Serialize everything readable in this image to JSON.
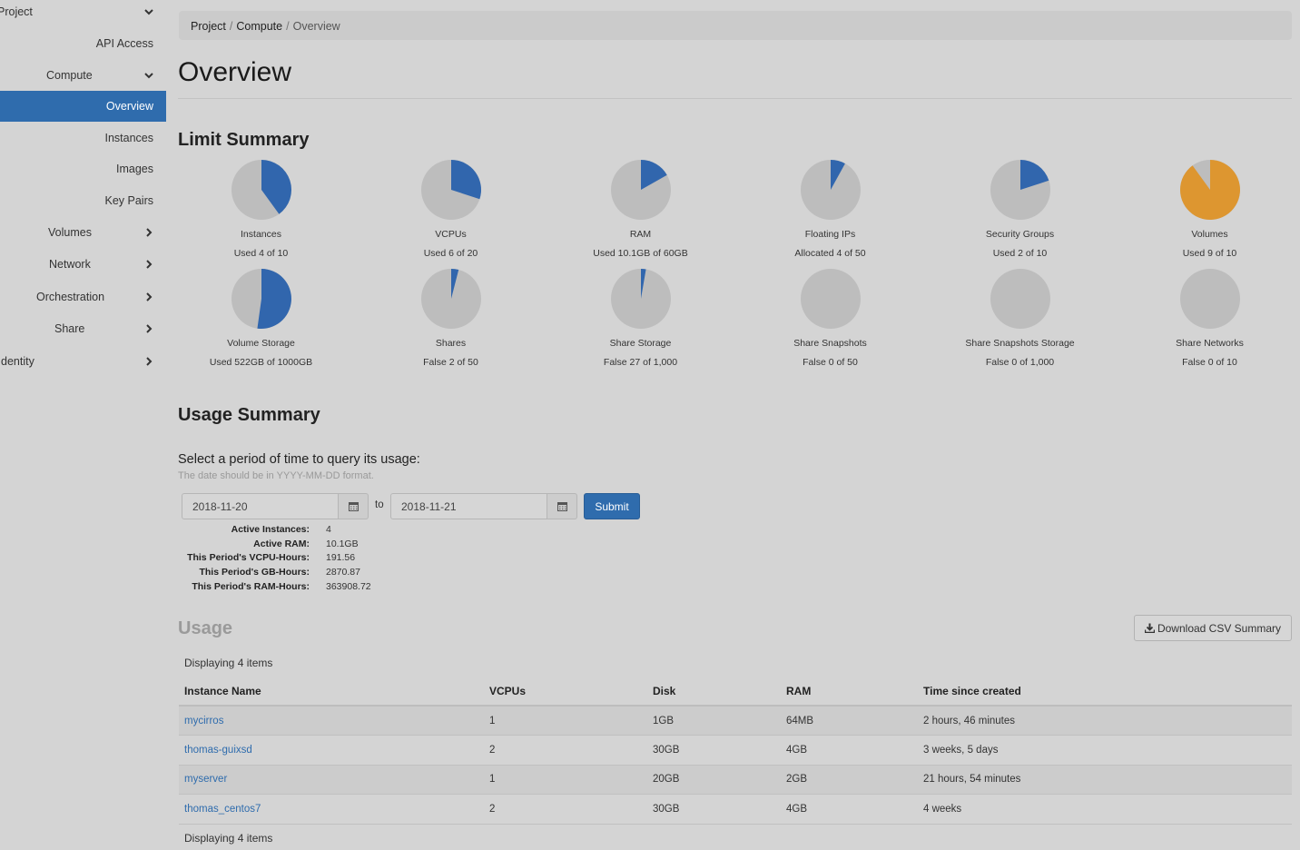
{
  "sidebar": {
    "items": [
      {
        "label": "Project",
        "chevron": "down"
      },
      {
        "label": "API Access"
      },
      {
        "label": "Compute",
        "chevron": "down"
      },
      {
        "label": "Overview",
        "active": true
      },
      {
        "label": "Instances"
      },
      {
        "label": "Images"
      },
      {
        "label": "Key Pairs"
      },
      {
        "label": "Volumes",
        "chevron": "right"
      },
      {
        "label": "Network",
        "chevron": "right"
      },
      {
        "label": "Orchestration",
        "chevron": "right"
      },
      {
        "label": "Share",
        "chevron": "right"
      },
      {
        "label": "dentity",
        "chevron": "right"
      }
    ]
  },
  "breadcrumb": {
    "project": "Project",
    "compute": "Compute",
    "current": "Overview",
    "sep": "/"
  },
  "page_title": "Overview",
  "limit_summary": {
    "title": "Limit Summary",
    "colors": {
      "used": "#3166ad",
      "free": "#bdbdbd",
      "warning": "#dd9630"
    },
    "pies": [
      {
        "label": "Instances",
        "used_text": "Used 4 of 10",
        "fraction": 0.4
      },
      {
        "label": "VCPUs",
        "used_text": "Used 6 of 20",
        "fraction": 0.3
      },
      {
        "label": "RAM",
        "used_text": "Used 10.1GB of 60GB",
        "fraction": 0.168
      },
      {
        "label": "Floating IPs",
        "used_text": "Allocated 4 of 50",
        "fraction": 0.08
      },
      {
        "label": "Security Groups",
        "used_text": "Used 2 of 10",
        "fraction": 0.2
      },
      {
        "label": "Volumes",
        "used_text": "Used 9 of 10",
        "fraction": 0.9,
        "warning": true
      },
      {
        "label": "Volume Storage",
        "used_text": "Used 522GB of 1000GB",
        "fraction": 0.522
      },
      {
        "label": "Shares",
        "used_text": "False 2 of 50",
        "fraction": 0.04
      },
      {
        "label": "Share Storage",
        "used_text": "False 27 of 1,000",
        "fraction": 0.027
      },
      {
        "label": "Share Snapshots",
        "used_text": "False 0 of 50",
        "fraction": 0
      },
      {
        "label": "Share Snapshots Storage",
        "used_text": "False 0 of 1,000",
        "fraction": 0
      },
      {
        "label": "Share Networks",
        "used_text": "False 0 of 10",
        "fraction": 0
      }
    ]
  },
  "usage_summary": {
    "title": "Usage Summary",
    "query_label": "Select a period of time to query its usage:",
    "hint": "The date should be in YYYY-MM-DD format.",
    "start_date": "2018-11-20",
    "end_date": "2018-11-21",
    "to_label": "to",
    "submit_label": "Submit",
    "stats": [
      {
        "key": "Active Instances:",
        "value": "4"
      },
      {
        "key": "Active RAM:",
        "value": "10.1GB"
      },
      {
        "key": "This Period's VCPU-Hours:",
        "value": "191.56"
      },
      {
        "key": "This Period's GB-Hours:",
        "value": "2870.87"
      },
      {
        "key": "This Period's RAM-Hours:",
        "value": "363908.72"
      }
    ]
  },
  "usage": {
    "title": "Usage",
    "csv_label": "Download CSV Summary",
    "displaying": "Displaying 4 items",
    "columns": [
      "Instance Name",
      "VCPUs",
      "Disk",
      "RAM",
      "Time since created"
    ],
    "rows": [
      {
        "name": "mycirros",
        "vcpus": "1",
        "disk": "1GB",
        "ram": "64MB",
        "age": "2 hours, 46 minutes"
      },
      {
        "name": "thomas-guixsd",
        "vcpus": "2",
        "disk": "30GB",
        "ram": "4GB",
        "age": "3 weeks, 5 days"
      },
      {
        "name": "myserver",
        "vcpus": "1",
        "disk": "20GB",
        "ram": "2GB",
        "age": "21 hours, 54 minutes"
      },
      {
        "name": "thomas_centos7",
        "vcpus": "2",
        "disk": "30GB",
        "ram": "4GB",
        "age": "4 weeks"
      }
    ]
  }
}
